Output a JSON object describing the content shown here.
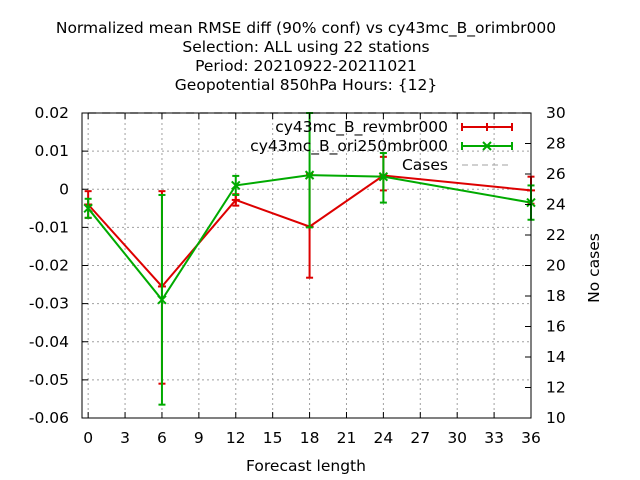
{
  "chart_data": {
    "type": "line",
    "title_lines": [
      "Normalized mean RMSE diff (90% conf) vs cy43mc_B_orimbr000",
      "Selection: ALL using    22 stations",
      "Period: 20210922-20211021",
      "Geopotential 850hPa   Hours: {12}"
    ],
    "xlabel": "Forecast length",
    "ylabel": "",
    "y2label": "No cases",
    "xlim": [
      -0.5,
      36
    ],
    "ylim": [
      -0.06,
      0.02
    ],
    "y2lim": [
      10,
      30
    ],
    "xticks": [
      0,
      3,
      6,
      9,
      12,
      15,
      18,
      21,
      24,
      27,
      30,
      33,
      36
    ],
    "yticks": [
      0.02,
      0.01,
      0,
      -0.01,
      -0.02,
      -0.03,
      -0.04,
      -0.05,
      -0.06
    ],
    "yticklabels": [
      "0.02",
      "0.01",
      "0",
      "-0.01",
      "-0.02",
      "-0.03",
      "-0.04",
      "-0.05",
      "-0.06"
    ],
    "y2ticks": [
      30,
      28,
      26,
      24,
      22,
      20,
      18,
      16,
      14,
      12,
      10
    ],
    "grid": true,
    "legend_position": "top-right",
    "series": [
      {
        "name": "cy43mc_B_revmbr000",
        "color": "#dd0000",
        "marker": "plus",
        "x": [
          0,
          6,
          12,
          18,
          24,
          36
        ],
        "y": [
          -0.004,
          -0.0255,
          -0.0028,
          -0.0098,
          0.0036,
          -0.0003
        ],
        "err_low": [
          -0.0075,
          -0.051,
          -0.0043,
          -0.0232,
          -0.0003,
          -0.0038
        ],
        "err_high": [
          -0.0005,
          -0.0005,
          -0.0013,
          0.004,
          0.0085,
          0.0033
        ]
      },
      {
        "name": "cy43mc_B_ori250mbr000",
        "color": "#00aa00",
        "marker": "x",
        "x": [
          0,
          6,
          12,
          18,
          24,
          36
        ],
        "y": [
          -0.005,
          -0.029,
          0.001,
          0.0037,
          0.0033,
          -0.0035
        ],
        "err_low": [
          -0.0075,
          -0.0565,
          -0.0015,
          -0.01,
          -0.0035,
          -0.008
        ],
        "err_high": [
          -0.0025,
          -0.0015,
          0.0035,
          0.02,
          0.0095,
          0.001
        ]
      },
      {
        "name": "Cases",
        "color": "#a0a0a0",
        "dashed": true,
        "x": [
          0,
          6,
          12,
          18,
          24,
          36
        ],
        "y2": [
          30,
          30,
          30,
          30,
          30,
          30
        ]
      }
    ]
  }
}
